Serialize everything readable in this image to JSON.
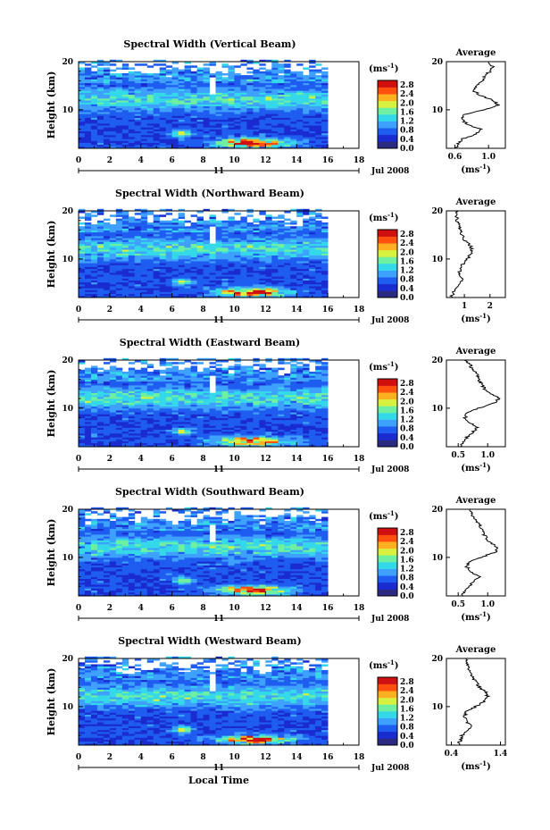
{
  "chart_data": {
    "type": "heatmap",
    "panels": [
      {
        "title": "Spectral Width (Vertical Beam)",
        "avg": {
          "xticks": [
            "0.6",
            "1.0"
          ],
          "xlim": [
            0.5,
            1.2
          ],
          "profile": [
            [
              2,
              0.62
            ],
            [
              3,
              0.64
            ],
            [
              4,
              0.7
            ],
            [
              5,
              0.86
            ],
            [
              6,
              0.9
            ],
            [
              7,
              0.75
            ],
            [
              8,
              0.68
            ],
            [
              9,
              0.72
            ],
            [
              10,
              0.95
            ],
            [
              11,
              1.12
            ],
            [
              12,
              1.05
            ],
            [
              13,
              0.9
            ],
            [
              14,
              0.82
            ],
            [
              15,
              0.85
            ],
            [
              16,
              0.92
            ],
            [
              17,
              0.95
            ],
            [
              18,
              1.02
            ],
            [
              19,
              1.05
            ],
            [
              20,
              1.0
            ]
          ]
        }
      },
      {
        "title": "Spectral Width (Northward Beam)",
        "avg": {
          "xticks": [
            "1",
            "2"
          ],
          "xlim": [
            0.3,
            2.6
          ],
          "profile": [
            [
              2,
              0.5
            ],
            [
              3,
              0.55
            ],
            [
              4,
              0.7
            ],
            [
              5,
              0.85
            ],
            [
              6,
              0.9
            ],
            [
              7,
              0.8
            ],
            [
              8,
              0.82
            ],
            [
              9,
              0.95
            ],
            [
              10,
              1.1
            ],
            [
              11,
              1.25
            ],
            [
              12,
              1.3
            ],
            [
              13,
              1.2
            ],
            [
              14,
              1.0
            ],
            [
              15,
              0.9
            ],
            [
              16,
              0.85
            ],
            [
              17,
              0.8
            ],
            [
              18,
              0.72
            ],
            [
              19,
              0.7
            ],
            [
              20,
              0.65
            ]
          ]
        }
      },
      {
        "title": "Spectral Width (Eastward Beam)",
        "avg": {
          "xticks": [
            "0.5",
            "1.0"
          ],
          "xlim": [
            0.3,
            1.3
          ],
          "profile": [
            [
              2,
              0.55
            ],
            [
              3,
              0.58
            ],
            [
              4,
              0.65
            ],
            [
              5,
              0.75
            ],
            [
              6,
              0.82
            ],
            [
              7,
              0.7
            ],
            [
              8,
              0.62
            ],
            [
              9,
              0.65
            ],
            [
              10,
              0.85
            ],
            [
              11,
              1.1
            ],
            [
              12,
              1.2
            ],
            [
              13,
              1.05
            ],
            [
              14,
              0.95
            ],
            [
              15,
              0.9
            ],
            [
              16,
              0.85
            ],
            [
              17,
              0.82
            ],
            [
              18,
              0.75
            ],
            [
              19,
              0.7
            ],
            [
              20,
              0.6
            ]
          ]
        }
      },
      {
        "title": "Spectral Width (Southward Beam)",
        "avg": {
          "xticks": [
            "0.5",
            "1.0"
          ],
          "xlim": [
            0.3,
            1.3
          ],
          "profile": [
            [
              2,
              0.58
            ],
            [
              3,
              0.6
            ],
            [
              4,
              0.68
            ],
            [
              5,
              0.78
            ],
            [
              6,
              0.85
            ],
            [
              7,
              0.72
            ],
            [
              8,
              0.65
            ],
            [
              9,
              0.68
            ],
            [
              10,
              0.88
            ],
            [
              11,
              1.12
            ],
            [
              12,
              1.18
            ],
            [
              13,
              1.05
            ],
            [
              14,
              0.98
            ],
            [
              15,
              0.92
            ],
            [
              16,
              0.9
            ],
            [
              17,
              0.85
            ],
            [
              18,
              0.78
            ],
            [
              19,
              0.72
            ],
            [
              20,
              0.7
            ]
          ]
        }
      },
      {
        "title": "Spectral Width (Westward Beam)",
        "avg": {
          "xticks": [
            "0.4",
            "1.4"
          ],
          "xlim": [
            0.3,
            1.5
          ],
          "profile": [
            [
              2,
              0.55
            ],
            [
              3,
              0.58
            ],
            [
              4,
              0.62
            ],
            [
              5,
              0.72
            ],
            [
              6,
              0.8
            ],
            [
              7,
              0.7
            ],
            [
              8,
              0.66
            ],
            [
              9,
              0.72
            ],
            [
              10,
              0.9
            ],
            [
              11,
              1.05
            ],
            [
              12,
              1.15
            ],
            [
              13,
              1.1
            ],
            [
              14,
              0.98
            ],
            [
              15,
              0.9
            ],
            [
              16,
              0.85
            ],
            [
              17,
              0.8
            ],
            [
              18,
              0.75
            ],
            [
              19,
              0.72
            ],
            [
              20,
              0.7
            ]
          ]
        }
      }
    ],
    "xlim": [
      0,
      18
    ],
    "ylim": [
      2,
      20
    ],
    "xticks": [
      "0",
      "2",
      "4",
      "6",
      "8",
      "10",
      "12",
      "14",
      "16",
      "18"
    ],
    "yticks": [
      "10",
      "20"
    ],
    "ylabel": "Height (km)",
    "xlabel": "Local Time",
    "date_marker": "11",
    "date_label": "Jul 2008",
    "colorbar": {
      "unit": "(ms",
      "unit_exp": "-1",
      "unit_close": ")",
      "ticks": [
        "2.8",
        "2.4",
        "2.0",
        "1.6",
        "1.2",
        "0.8",
        "0.4",
        "0.0"
      ],
      "range": [
        0,
        3.0
      ]
    },
    "avg_title": "Average",
    "avg_xlabel": "(ms",
    "avg_xlabel_exp": "-1",
    "avg_xlabel_close": ")",
    "data_extent": [
      0,
      16
    ],
    "colors": [
      "#2a2a80",
      "#1a2bd0",
      "#1e5df0",
      "#3ea0ff",
      "#34d8e8",
      "#6ef0a0",
      "#d8f040",
      "#ffb020",
      "#ff5010",
      "#d01010"
    ]
  }
}
